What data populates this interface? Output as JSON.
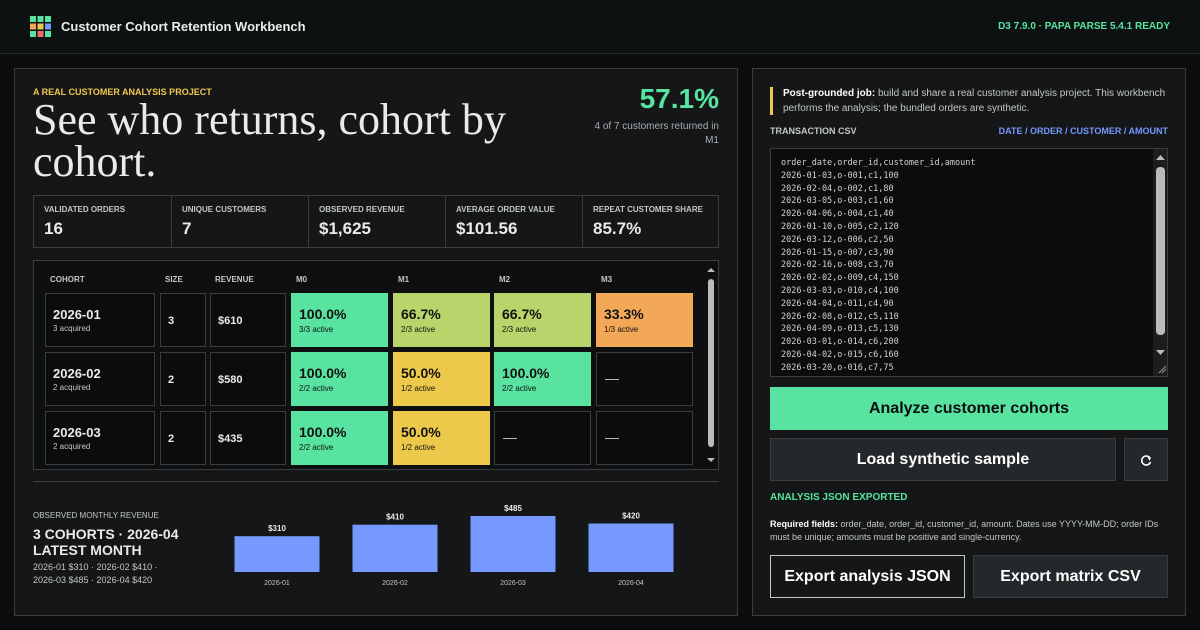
{
  "header": {
    "title": "Customer Cohort Retention Workbench",
    "status": "D3 7.9.0 · PAPA PARSE 5.4.1 READY"
  },
  "hero": {
    "eyebrow": "A REAL CUSTOMER ANALYSIS PROJECT",
    "title": "See who returns, cohort by cohort.",
    "metric": "57.1%",
    "metric_note": "4 of 7 customers returned in M1"
  },
  "stats": [
    {
      "label": "VALIDATED ORDERS",
      "value": "16"
    },
    {
      "label": "UNIQUE CUSTOMERS",
      "value": "7"
    },
    {
      "label": "OBSERVED REVENUE",
      "value": "$1,625"
    },
    {
      "label": "AVERAGE ORDER VALUE",
      "value": "$101.56"
    },
    {
      "label": "REPEAT CUSTOMER SHARE",
      "value": "85.7%"
    }
  ],
  "matrix": {
    "headers": [
      "COHORT",
      "SIZE",
      "REVENUE",
      "M0",
      "M1",
      "M2",
      "M3"
    ],
    "rows": [
      {
        "cohort": "2026-01",
        "acquired": "3 acquired",
        "size": "3",
        "revenue": "$610",
        "cells": [
          {
            "value": "100.0%",
            "detail": "3/3 active",
            "color": "#58e3a0"
          },
          {
            "value": "66.7%",
            "detail": "2/3 active",
            "color": "#b9d46a"
          },
          {
            "value": "66.7%",
            "detail": "2/3 active",
            "color": "#b9d46a"
          },
          {
            "value": "33.3%",
            "detail": "1/3 active",
            "color": "#f2a856"
          }
        ]
      },
      {
        "cohort": "2026-02",
        "acquired": "2 acquired",
        "size": "2",
        "revenue": "$580",
        "cells": [
          {
            "value": "100.0%",
            "detail": "2/2 active",
            "color": "#58e3a0"
          },
          {
            "value": "50.0%",
            "detail": "1/2 active",
            "color": "#ecc94b"
          },
          {
            "value": "100.0%",
            "detail": "2/2 active",
            "color": "#58e3a0"
          },
          {
            "value": "—"
          }
        ]
      },
      {
        "cohort": "2026-03",
        "acquired": "2 acquired",
        "size": "2",
        "revenue": "$435",
        "cells": [
          {
            "value": "100.0%",
            "detail": "2/2 active",
            "color": "#58e3a0"
          },
          {
            "value": "50.0%",
            "detail": "1/2 active",
            "color": "#ecc94b"
          },
          {
            "value": "—"
          },
          {
            "value": "—"
          }
        ]
      }
    ]
  },
  "revenue": {
    "eyebrow": "OBSERVED MONTHLY REVENUE",
    "headline": "3 COHORTS · 2026-04 LATEST MONTH",
    "note": "2026-01 $310 · 2026-02 $410 · 2026-03 $485 · 2026-04 $420",
    "chart": {
      "type": "bar",
      "categories": [
        "2026-01",
        "2026-02",
        "2026-03",
        "2026-04"
      ],
      "values": [
        310,
        410,
        485,
        420
      ],
      "value_labels": [
        "$310",
        "$410",
        "$485",
        "$420"
      ],
      "color": "#7599ff"
    }
  },
  "workbench": {
    "notice_strong": "Post-grounded job:",
    "notice_text": "build and share a real customer analysis project. This workbench performs the analysis; the bundled orders are synthetic.",
    "csv_label": "TRANSACTION CSV",
    "csv_fields": "DATE / ORDER / CUSTOMER / AMOUNT",
    "csv_lines": [
      "order_date,order_id,customer_id,amount",
      "2026-01-03,o-001,c1,100",
      "2026-02-04,o-002,c1,80",
      "2026-03-05,o-003,c1,60",
      "2026-04-06,o-004,c1,40",
      "2026-01-10,o-005,c2,120",
      "2026-03-12,o-006,c2,50",
      "2026-01-15,o-007,c3,90",
      "2026-02-16,o-008,c3,70",
      "2026-02-02,o-009,c4,150",
      "2026-03-03,o-010,c4,100",
      "2026-04-04,o-011,c4,90",
      "2026-02-08,o-012,c5,110",
      "2026-04-09,o-013,c5,130",
      "2026-03-01,o-014,c6,200",
      "2026-04-02,o-015,c6,160",
      "2026-03-20,o-016,c7,75"
    ],
    "analyze": "Analyze customer cohorts",
    "load": "Load synthetic sample",
    "status": "ANALYSIS JSON EXPORTED",
    "required_strong": "Required fields:",
    "required_text": "order_date, order_id, customer_id, amount. Dates use YYYY-MM-DD; order IDs must be unique; amounts must be positive and single-currency.",
    "export_json": "Export analysis JSON",
    "export_csv": "Export matrix CSV"
  }
}
